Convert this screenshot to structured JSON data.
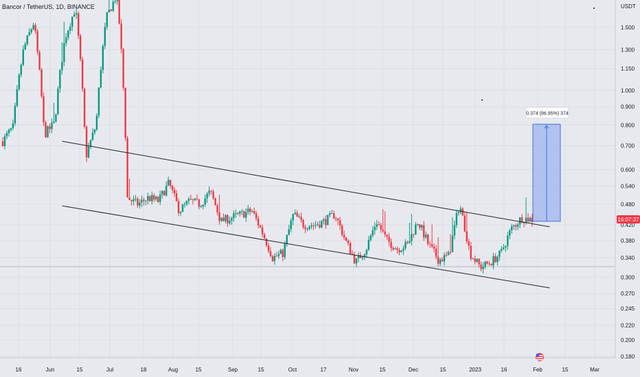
{
  "header": {
    "title": "Bancor / TetherUS, 1D, BINANCE"
  },
  "price_axis": {
    "unit": "USDT",
    "ticks": [
      "1.500",
      "1.300",
      "1.150",
      "1.000",
      "0.900",
      "0.800",
      "0.700",
      "0.600",
      "0.540",
      "0.480",
      "0.420",
      "0.380",
      "0.340",
      "0.300",
      "0.270",
      "0.245",
      "0.220",
      "0.200",
      "0.180"
    ],
    "current_label": "16:07:37",
    "current_color": "#f23645"
  },
  "time_axis": {
    "ticks": [
      "16",
      "Jun",
      "15",
      "Jul",
      "18",
      "Aug",
      "15",
      "Sep",
      "15",
      "Oct",
      "17",
      "Nov",
      "15",
      "Dec",
      "15",
      "2023",
      "16",
      "Feb",
      "15",
      "Mar"
    ]
  },
  "measure": {
    "label": "0.374 (86.95%) 374",
    "fill": "#9fb4ee",
    "stroke": "#3f6fe0"
  },
  "colors": {
    "up": "#089981",
    "down": "#f23645",
    "background": "#e8e9ee",
    "trendline": "#1e2229"
  },
  "chart_data": {
    "type": "candlestick",
    "title": "Bancor / TetherUS, 1D, BINANCE",
    "x_range": [
      "2022-05-16",
      "2023-03-01"
    ],
    "y_scale": "log",
    "ylim": [
      0.175,
      1.8
    ],
    "trend": [
      {
        "points": [
          0.72,
          0.79,
          1.3,
          1.55
        ]
      },
      {
        "points": [
          0.75,
          0.81,
          1.4,
          1.7
        ]
      },
      {
        "points": [
          0.65,
          0.8,
          1.6,
          1.85
        ]
      },
      {
        "points": [
          0.5,
          0.48,
          0.5,
          0.49
        ]
      },
      {
        "points": [
          0.55,
          0.46,
          0.49,
          0.48
        ]
      },
      {
        "points": [
          0.52,
          0.43,
          0.44,
          0.45
        ]
      },
      {
        "points": [
          0.46,
          0.4,
          0.34,
          0.35
        ]
      },
      {
        "points": [
          0.45,
          0.42,
          0.42,
          0.43
        ]
      },
      {
        "points": [
          0.45,
          0.38,
          0.33,
          0.36
        ]
      },
      {
        "points": [
          0.43,
          0.38,
          0.36,
          0.37
        ]
      },
      {
        "points": [
          0.43,
          0.37,
          0.335,
          0.345
        ]
      },
      {
        "points": [
          0.48,
          0.35,
          0.32,
          0.33
        ]
      },
      {
        "points": [
          0.35,
          0.41,
          0.44,
          0.435
        ]
      }
    ],
    "channel_upper": {
      "from": [
        0.72,
        "2022-06-07"
      ],
      "to": [
        0.415,
        "2023-02-07"
      ]
    },
    "channel_lower": {
      "from": [
        0.475,
        "2022-06-07"
      ],
      "to": [
        0.28,
        "2023-02-07"
      ]
    },
    "measurement": {
      "from": 0.43,
      "to": 0.804,
      "change": 0.374,
      "percent": 86.95,
      "ticks": 374
    }
  }
}
